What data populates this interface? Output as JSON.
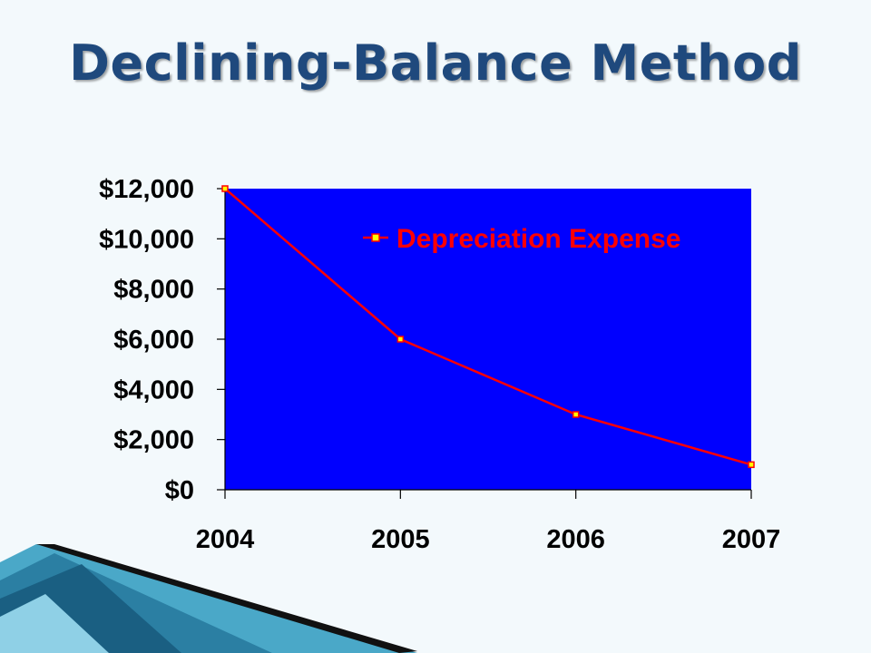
{
  "slide": {
    "title": "Declining-Balance Method"
  },
  "colors": {
    "plot_background": "#0000ff",
    "series_line": "#ff0000",
    "marker_fill": "#ffff00",
    "title_color": "#1f497d",
    "legend_text": "#ff0000"
  },
  "chart_data": {
    "type": "line",
    "title": "",
    "xlabel": "",
    "ylabel": "",
    "categories": [
      "2004",
      "2005",
      "2006",
      "2007"
    ],
    "series": [
      {
        "name": "Depreciation Expense",
        "values": [
          12000,
          6000,
          3000,
          1000
        ]
      }
    ],
    "ylim": [
      0,
      12000
    ],
    "yticks": [
      0,
      2000,
      4000,
      6000,
      8000,
      10000,
      12000
    ],
    "ytick_labels": [
      "$0",
      "$2,000",
      "$4,000",
      "$6,000",
      "$8,000",
      "$10,000",
      "$12,000"
    ],
    "grid": false,
    "legend_position": "top-right inside plot"
  }
}
